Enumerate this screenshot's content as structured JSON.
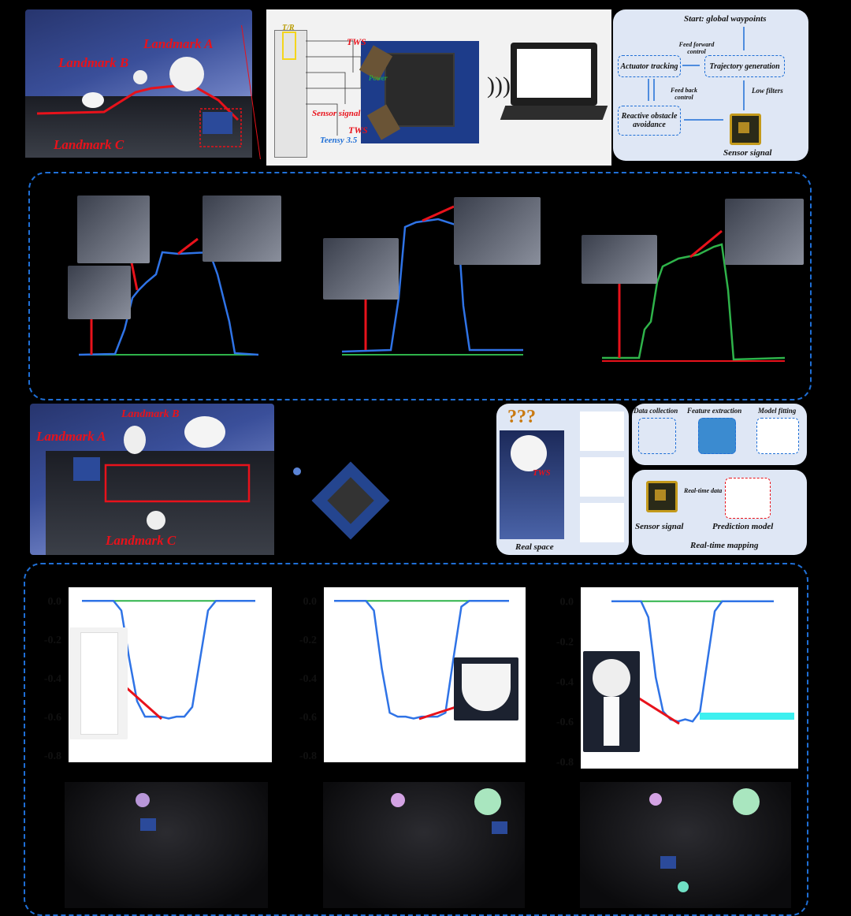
{
  "panel_a": {
    "landmarks": [
      "Landmark A",
      "Landmark B",
      "Landmark C"
    ]
  },
  "panel_b": {
    "labels": {
      "tr": "T/R",
      "tws_top": "TWS",
      "tws_bottom": "TWS",
      "power": "Power",
      "sensor_signal": "Sensor signal",
      "teensy": "Teensy 3.5"
    }
  },
  "panel_c": {
    "start": "Start: global waypoints",
    "feed_forward": "Feed forward control",
    "feed_back": "Feed back control",
    "actuator": "Actuator tracking",
    "trajectory": "Trajectory generation",
    "low_filters": "Low filters",
    "reactive": "Reactive obstacle avoidance",
    "sensor": "Sensor signal"
  },
  "panel_e": {
    "landmarks": [
      "Landmark B",
      "Landmark A",
      "Landmark C"
    ]
  },
  "panel_g": {
    "question": "???",
    "data_collection": "Data collection",
    "feature_extraction": "Feature extraction",
    "model_fitting": "Model fitting",
    "tws": "TWS",
    "real_space": "Real space",
    "sensor_signal": "Sensor signal",
    "real_time_data": "Real-time data",
    "prediction_model": "Prediction model",
    "real_time_mapping": "Real-time mapping"
  },
  "colors": {
    "accent": "#1f6fd6",
    "trace_blue": "#2f73e6",
    "trace_green": "#2fb34a",
    "trace_red": "#e8121b",
    "arrow": "#e8121b"
  },
  "chart_data": [
    {
      "type": "line",
      "ylim": [
        -0.8,
        0.05
      ],
      "yticks": [
        "0.0",
        "-0.2",
        "-0.4",
        "-0.6",
        "-0.8"
      ],
      "series": [
        {
          "values": [
            0,
            0,
            0,
            0,
            0,
            -0.05,
            -0.3,
            -0.52,
            -0.6,
            -0.6,
            -0.6,
            -0.61,
            -0.6,
            -0.6,
            -0.55,
            -0.3,
            -0.05,
            0,
            0,
            0,
            0,
            0,
            0
          ]
        }
      ]
    },
    {
      "type": "line",
      "ylim": [
        -0.8,
        0.05
      ],
      "yticks": [
        "0.0",
        "-0.2",
        "-0.4",
        "-0.6",
        "-0.8"
      ],
      "series": [
        {
          "values": [
            0,
            0,
            0,
            0,
            0,
            -0.05,
            -0.35,
            -0.58,
            -0.6,
            -0.6,
            -0.61,
            -0.6,
            -0.6,
            -0.6,
            -0.58,
            -0.3,
            -0.03,
            0,
            0,
            0,
            0,
            0,
            0
          ]
        }
      ]
    },
    {
      "type": "line",
      "ylim": [
        -0.8,
        0.05
      ],
      "yticks": [
        "0.0",
        "-0.2",
        "-0.4",
        "-0.6",
        "-0.8"
      ],
      "series": [
        {
          "values": [
            0,
            0,
            0,
            0,
            0,
            -0.08,
            -0.38,
            -0.55,
            -0.59,
            -0.6,
            -0.59,
            -0.6,
            -0.55,
            -0.3,
            -0.05,
            0,
            0,
            0,
            0,
            0,
            0,
            0,
            0
          ]
        }
      ]
    }
  ]
}
